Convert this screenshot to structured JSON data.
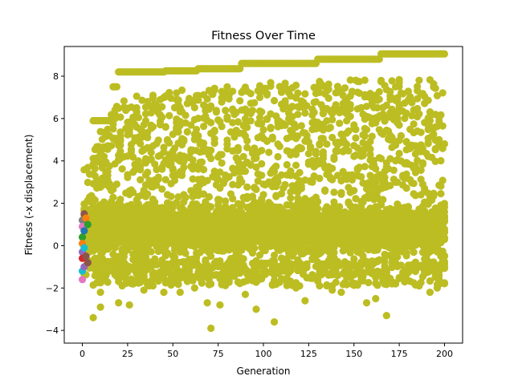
{
  "chart_data": {
    "type": "scatter",
    "title": "Fitness Over Time",
    "xlabel": "Generation",
    "ylabel": "Fitness (-x displacement)",
    "xlim": [
      -10,
      210
    ],
    "ylim": [
      -4.6,
      9.4
    ],
    "xticks": [
      0,
      25,
      50,
      75,
      100,
      125,
      150,
      175,
      200
    ],
    "yticks": [
      -4,
      -2,
      0,
      2,
      4,
      6,
      8
    ],
    "grid": false,
    "legend": "none",
    "point_color": "#bcbd22",
    "best_so_far": [
      [
        6,
        5.9
      ],
      [
        16,
        5.9
      ],
      [
        17,
        7.5
      ],
      [
        19,
        7.5
      ],
      [
        20,
        8.2
      ],
      [
        45,
        8.2
      ],
      [
        46,
        8.25
      ],
      [
        63,
        8.25
      ],
      [
        64,
        8.35
      ],
      [
        87,
        8.35
      ],
      [
        88,
        8.6
      ],
      [
        129,
        8.6
      ],
      [
        130,
        8.8
      ],
      [
        164,
        8.8
      ],
      [
        165,
        9.05
      ],
      [
        200,
        9.05
      ]
    ],
    "upper_envelope": [
      [
        2,
        3.6
      ],
      [
        4,
        3.8
      ],
      [
        6,
        4.4
      ],
      [
        10,
        5.4
      ],
      [
        15,
        6.4
      ],
      [
        20,
        6.8
      ],
      [
        25,
        7.0
      ],
      [
        50,
        7.3
      ],
      [
        75,
        7.5
      ],
      [
        100,
        7.7
      ],
      [
        125,
        7.8
      ],
      [
        150,
        7.9
      ],
      [
        175,
        7.9
      ],
      [
        200,
        7.8
      ]
    ],
    "early_points": [
      {
        "x": 0,
        "y": 1.2,
        "color": "#7f7f7f"
      },
      {
        "x": 0,
        "y": 0.9,
        "color": "#e377c2"
      },
      {
        "x": 0,
        "y": 0.4,
        "color": "#2ca02c"
      },
      {
        "x": 0,
        "y": 0.1,
        "color": "#ff7f0e"
      },
      {
        "x": 0,
        "y": -0.3,
        "color": "#9467bd"
      },
      {
        "x": 0,
        "y": -0.6,
        "color": "#d62728"
      },
      {
        "x": 0,
        "y": -1.2,
        "color": "#17becf"
      },
      {
        "x": 0,
        "y": -1.6,
        "color": "#e377c2"
      },
      {
        "x": 1,
        "y": 1.5,
        "color": "#8c564b"
      },
      {
        "x": 1,
        "y": 0.7,
        "color": "#1f77b4"
      },
      {
        "x": 1,
        "y": -0.1,
        "color": "#17becf"
      },
      {
        "x": 1,
        "y": -1.0,
        "color": "#9467bd"
      },
      {
        "x": 2,
        "y": 1.3,
        "color": "#ff7f0e"
      },
      {
        "x": 2,
        "y": -0.5,
        "color": "#8c564b"
      },
      {
        "x": 3,
        "y": -0.8,
        "color": "#8c564b"
      },
      {
        "x": 3,
        "y": 1.0,
        "color": "#2ca02c"
      }
    ],
    "outliers": [
      [
        6,
        -3.4
      ],
      [
        10,
        -2.2
      ],
      [
        10,
        -2.9
      ],
      [
        20,
        -2.7
      ],
      [
        26,
        -2.8
      ],
      [
        34,
        -2.1
      ],
      [
        45,
        -2.2
      ],
      [
        54,
        -2.2
      ],
      [
        62,
        -2.0
      ],
      [
        69,
        -2.7
      ],
      [
        71,
        -3.9
      ],
      [
        76,
        -2.8
      ],
      [
        90,
        -2.3
      ],
      [
        96,
        -3.0
      ],
      [
        106,
        -3.6
      ],
      [
        118,
        -2.0
      ],
      [
        123,
        -2.6
      ],
      [
        138,
        -2.1
      ],
      [
        143,
        -2.2
      ],
      [
        157,
        -2.7
      ],
      [
        162,
        -2.5
      ],
      [
        168,
        -3.3
      ],
      [
        173,
        -1.8
      ],
      [
        186,
        -1.9
      ],
      [
        192,
        -2.2
      ],
      [
        196,
        -2.0
      ]
    ]
  }
}
